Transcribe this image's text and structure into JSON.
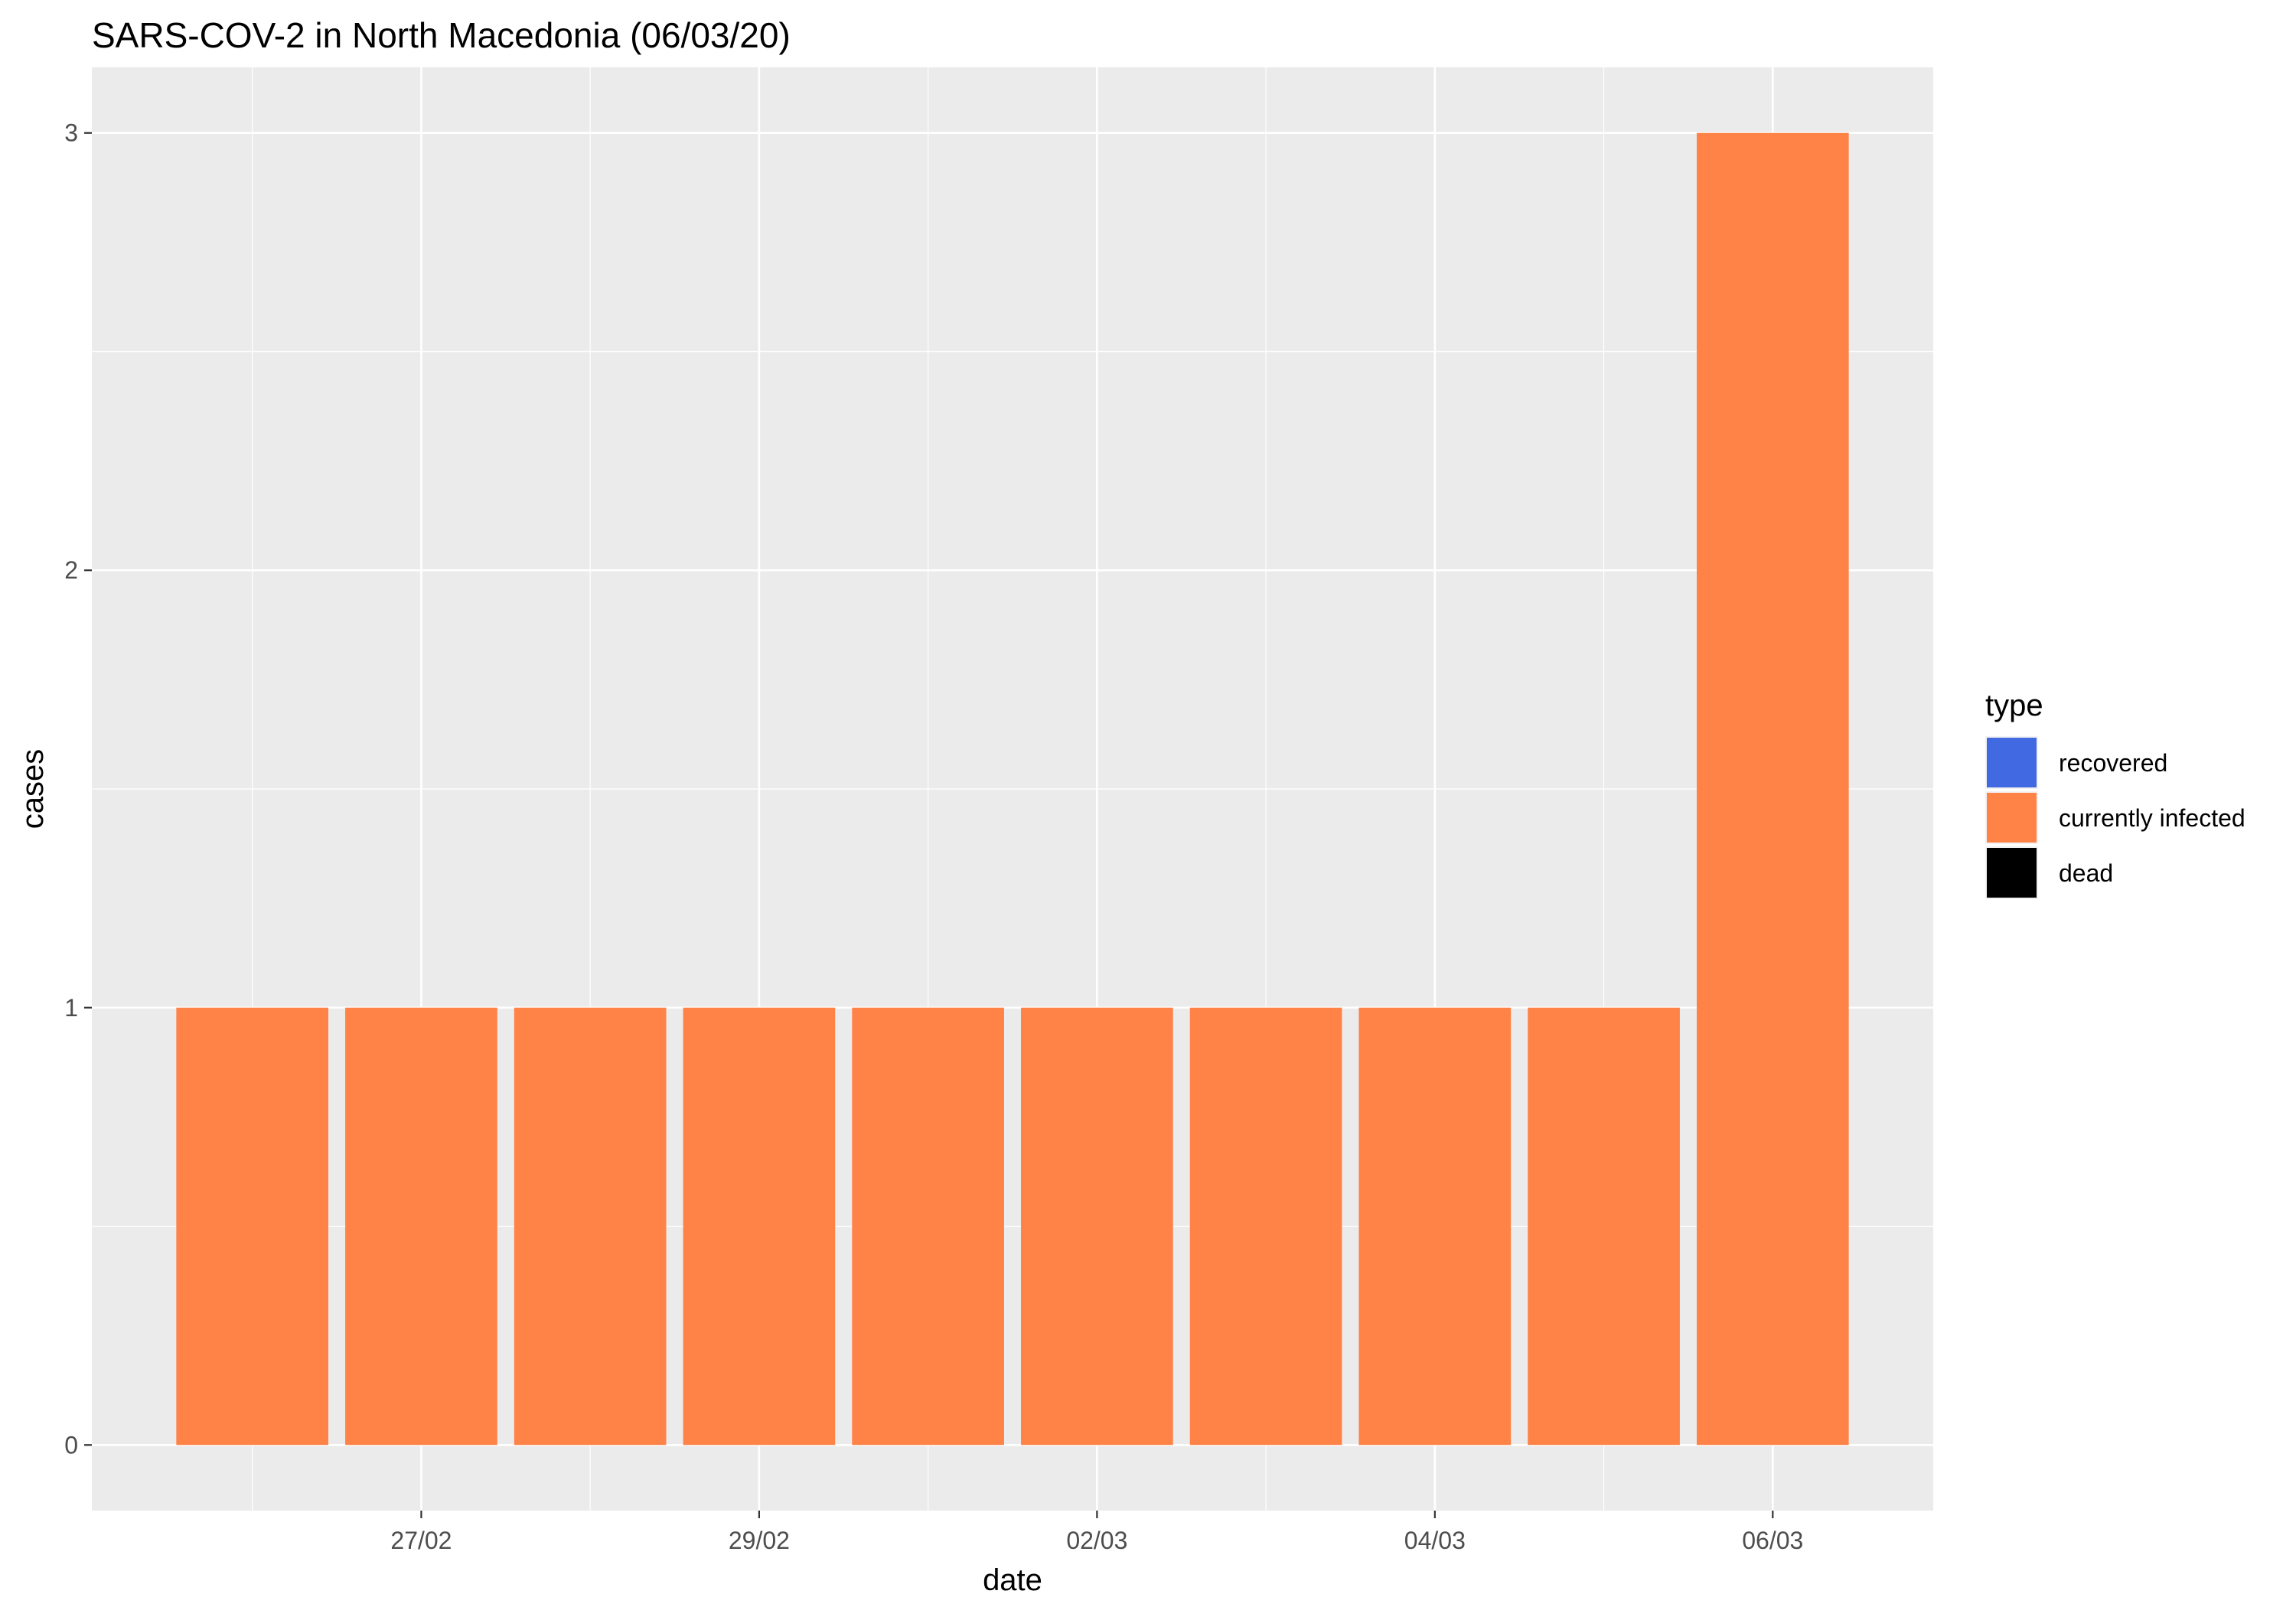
{
  "chart_data": {
    "type": "bar",
    "title": "SARS-COV-2 in North Macedonia (06/03/20)",
    "xlabel": "date",
    "ylabel": "cases",
    "categories": [
      "26/02",
      "27/02",
      "28/02",
      "29/02",
      "01/03",
      "02/03",
      "03/03",
      "04/03",
      "05/03",
      "06/03"
    ],
    "x_tick_labels": [
      "27/02",
      "29/02",
      "02/03",
      "04/03",
      "06/03"
    ],
    "y_ticks": [
      0,
      1,
      2,
      3
    ],
    "ylim": [
      -0.15,
      3.15
    ],
    "grid": true,
    "legend": {
      "title": "type",
      "position": "right",
      "entries": [
        {
          "name": "recovered",
          "color": "#4169E1"
        },
        {
          "name": "currently infected",
          "color": "#FF8247"
        },
        {
          "name": "dead",
          "color": "#000000"
        }
      ]
    },
    "series": [
      {
        "name": "recovered",
        "color": "#4169E1",
        "values": [
          0,
          0,
          0,
          0,
          0,
          0,
          0,
          0,
          0,
          0
        ]
      },
      {
        "name": "currently infected",
        "color": "#FF8247",
        "values": [
          1,
          1,
          1,
          1,
          1,
          1,
          1,
          1,
          1,
          3
        ]
      },
      {
        "name": "dead",
        "color": "#000000",
        "values": [
          0,
          0,
          0,
          0,
          0,
          0,
          0,
          0,
          0,
          0
        ]
      }
    ]
  }
}
